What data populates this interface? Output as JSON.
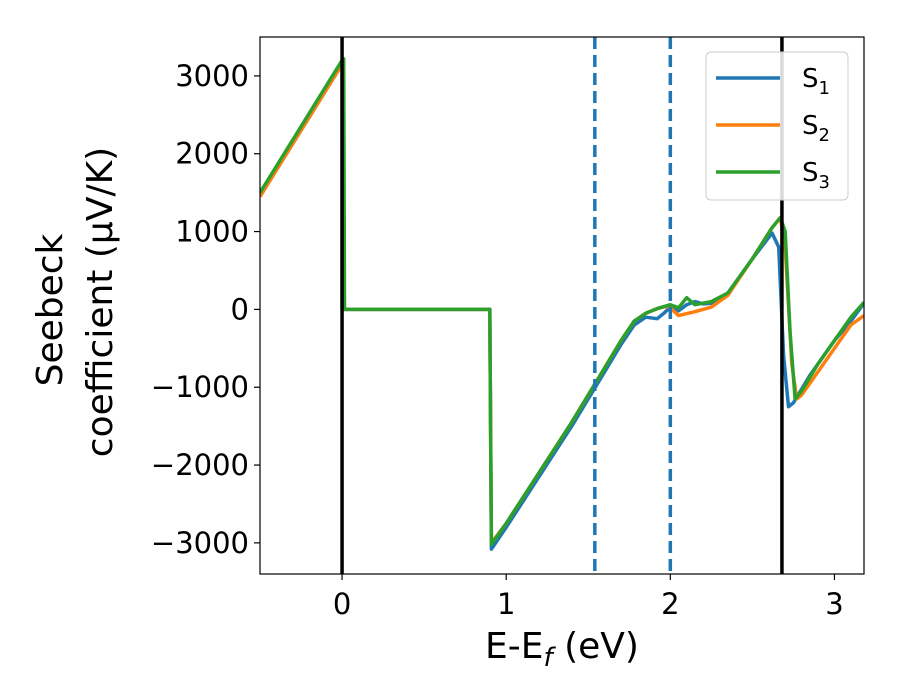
{
  "chart_data": {
    "type": "line",
    "xlabel": "E-E$_f$ (eV)",
    "xlabel_main": "E-E",
    "xlabel_sub": "f",
    "xlabel_tail": " (eV)",
    "ylabel_line1": "Seebeck",
    "ylabel_line2": "coefficient  (μV/K)",
    "xlim": [
      -0.5,
      3.18
    ],
    "ylim": [
      -3400,
      3500
    ],
    "xticks": [
      0,
      1,
      2,
      3
    ],
    "xtick_labels": [
      "0",
      "1",
      "2",
      "3"
    ],
    "yticks": [
      3000,
      2000,
      1000,
      0,
      -1000,
      -2000,
      -3000
    ],
    "ytick_labels": [
      "3000",
      "2000",
      "1000",
      "0",
      "−1000",
      "−2000",
      "−3000"
    ],
    "grid": false,
    "legend_position": "upper right",
    "vlines": [
      {
        "x": 0.0,
        "style": "solid",
        "color": "#000000"
      },
      {
        "x": 2.68,
        "style": "solid",
        "color": "#000000"
      },
      {
        "x": 1.54,
        "style": "dashed",
        "color": "#1f77b4"
      },
      {
        "x": 2.0,
        "style": "dashed",
        "color": "#1f77b4"
      }
    ],
    "series": [
      {
        "name": "S_1",
        "label_main": "S",
        "label_sub": "1",
        "color": "#1f77b4",
        "points": [
          [
            -0.5,
            1450
          ],
          [
            0.0,
            3150
          ],
          [
            0.0001,
            0
          ],
          [
            0.9,
            0
          ],
          [
            0.91,
            -3080
          ],
          [
            1.0,
            -2800
          ],
          [
            1.2,
            -2150
          ],
          [
            1.4,
            -1500
          ],
          [
            1.6,
            -800
          ],
          [
            1.7,
            -450
          ],
          [
            1.78,
            -200
          ],
          [
            1.85,
            -100
          ],
          [
            1.92,
            -120
          ],
          [
            1.96,
            -50
          ],
          [
            2.0,
            30
          ],
          [
            2.05,
            -20
          ],
          [
            2.1,
            60
          ],
          [
            2.15,
            100
          ],
          [
            2.2,
            70
          ],
          [
            2.25,
            80
          ],
          [
            2.35,
            200
          ],
          [
            2.5,
            650
          ],
          [
            2.62,
            980
          ],
          [
            2.66,
            800
          ],
          [
            2.69,
            -600
          ],
          [
            2.72,
            -1250
          ],
          [
            2.75,
            -1200
          ],
          [
            2.85,
            -850
          ],
          [
            3.0,
            -400
          ],
          [
            3.1,
            -150
          ],
          [
            3.18,
            80
          ]
        ]
      },
      {
        "name": "S_2",
        "label_main": "S",
        "label_sub": "2",
        "color": "#ff7f0e",
        "points": [
          [
            -0.5,
            1450
          ],
          [
            0.0,
            3150
          ],
          [
            0.0001,
            0
          ],
          [
            0.9,
            0
          ],
          [
            0.91,
            -3000
          ],
          [
            1.0,
            -2750
          ],
          [
            1.2,
            -2100
          ],
          [
            1.4,
            -1450
          ],
          [
            1.6,
            -750
          ],
          [
            1.7,
            -400
          ],
          [
            1.78,
            -150
          ],
          [
            1.85,
            -50
          ],
          [
            1.92,
            10
          ],
          [
            1.98,
            40
          ],
          [
            2.0,
            20
          ],
          [
            2.05,
            -80
          ],
          [
            2.15,
            -30
          ],
          [
            2.25,
            30
          ],
          [
            2.35,
            180
          ],
          [
            2.5,
            650
          ],
          [
            2.62,
            1050
          ],
          [
            2.67,
            1180
          ],
          [
            2.7,
            800
          ],
          [
            2.74,
            -700
          ],
          [
            2.77,
            -1150
          ],
          [
            2.8,
            -1100
          ],
          [
            2.9,
            -800
          ],
          [
            3.0,
            -500
          ],
          [
            3.1,
            -200
          ],
          [
            3.18,
            -80
          ]
        ]
      },
      {
        "name": "S_3",
        "label_main": "S",
        "label_sub": "3",
        "color": "#2ca02c",
        "points": [
          [
            -0.5,
            1500
          ],
          [
            0.0,
            3200
          ],
          [
            0.01,
            3220
          ],
          [
            0.015,
            0
          ],
          [
            0.9,
            0
          ],
          [
            0.91,
            -3020
          ],
          [
            1.0,
            -2750
          ],
          [
            1.2,
            -2100
          ],
          [
            1.4,
            -1450
          ],
          [
            1.6,
            -750
          ],
          [
            1.7,
            -400
          ],
          [
            1.78,
            -150
          ],
          [
            1.85,
            -50
          ],
          [
            1.92,
            10
          ],
          [
            2.0,
            60
          ],
          [
            2.05,
            20
          ],
          [
            2.1,
            150
          ],
          [
            2.15,
            60
          ],
          [
            2.25,
            100
          ],
          [
            2.35,
            210
          ],
          [
            2.5,
            650
          ],
          [
            2.62,
            1050
          ],
          [
            2.67,
            1180
          ],
          [
            2.7,
            1000
          ],
          [
            2.73,
            -300
          ],
          [
            2.76,
            -1150
          ],
          [
            2.8,
            -1050
          ],
          [
            2.9,
            -700
          ],
          [
            3.0,
            -400
          ],
          [
            3.1,
            -100
          ],
          [
            3.18,
            90
          ]
        ]
      }
    ]
  }
}
